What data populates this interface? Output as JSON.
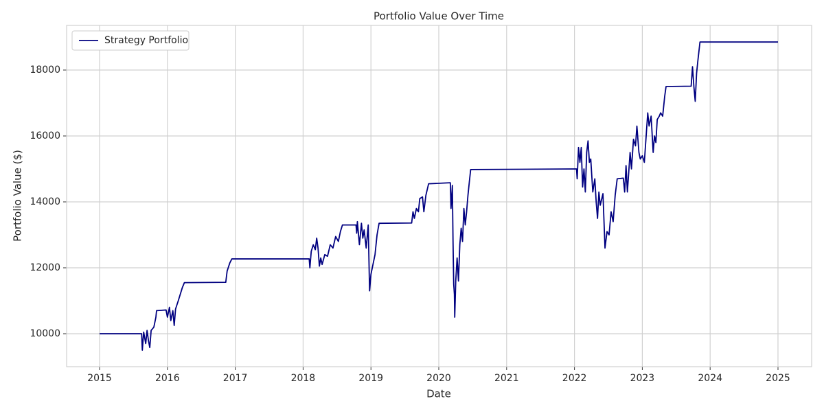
{
  "chart_data": {
    "type": "line",
    "title": "Portfolio Value Over Time",
    "x_label": "Date",
    "y_label": "Portfolio Value ($)",
    "xlim": [
      2014.514,
      2025.496
    ],
    "ylim": [
      9000,
      19354
    ],
    "xticks": [
      2015,
      2016,
      2017,
      2018,
      2019,
      2020,
      2021,
      2022,
      2023,
      2024,
      2025
    ],
    "yticks": [
      10000,
      12000,
      14000,
      16000,
      18000
    ],
    "grid": true,
    "legend": "upper left",
    "x": [
      2015.0,
      2015.62,
      2015.63,
      2015.65,
      2015.68,
      2015.7,
      2015.72,
      2015.74,
      2015.76,
      2015.8,
      2015.83,
      2015.84,
      2015.98,
      2016.0,
      2016.03,
      2016.05,
      2016.08,
      2016.1,
      2016.12,
      2016.16,
      2016.22,
      2016.25,
      2016.86,
      2016.88,
      2016.92,
      2016.95,
      2018.09,
      2018.1,
      2018.12,
      2018.15,
      2018.18,
      2018.2,
      2018.22,
      2018.24,
      2018.26,
      2018.28,
      2018.32,
      2018.36,
      2018.4,
      2018.44,
      2018.48,
      2018.52,
      2018.55,
      2018.58,
      2018.78,
      2018.79,
      2018.8,
      2018.83,
      2018.86,
      2018.88,
      2018.9,
      2018.93,
      2018.96,
      2018.98,
      2019.0,
      2019.03,
      2019.06,
      2019.09,
      2019.12,
      2019.6,
      2019.62,
      2019.64,
      2019.67,
      2019.7,
      2019.72,
      2019.76,
      2019.78,
      2019.81,
      2019.85,
      2020.17,
      2020.18,
      2020.2,
      2020.21,
      2020.22,
      2020.23,
      2020.235,
      2020.25,
      2020.27,
      2020.29,
      2020.31,
      2020.33,
      2020.35,
      2020.37,
      2020.39,
      2020.41,
      2020.43,
      2020.45,
      2020.47,
      2022.03,
      2022.04,
      2022.06,
      2022.08,
      2022.1,
      2022.12,
      2022.14,
      2022.16,
      2022.18,
      2022.2,
      2022.22,
      2022.24,
      2022.27,
      2022.3,
      2022.32,
      2022.34,
      2022.36,
      2022.38,
      2022.42,
      2022.45,
      2022.48,
      2022.51,
      2022.54,
      2022.57,
      2022.6,
      2022.63,
      2022.72,
      2022.74,
      2022.76,
      2022.78,
      2022.82,
      2022.84,
      2022.87,
      2022.9,
      2022.92,
      2022.95,
      2022.97,
      2023.0,
      2023.03,
      2023.06,
      2023.08,
      2023.1,
      2023.13,
      2023.16,
      2023.18,
      2023.2,
      2023.22,
      2023.25,
      2023.27,
      2023.3,
      2023.33,
      2023.35,
      2023.72,
      2023.74,
      2023.76,
      2023.78,
      2023.8,
      2023.82,
      2023.85,
      2025.0
    ],
    "series": [
      {
        "name": "Strategy Portfolio",
        "color": "#000080",
        "values": [
          10000,
          10000,
          9500,
          10050,
          9700,
          10100,
          9800,
          9580,
          10100,
          10200,
          10500,
          10700,
          10720,
          10500,
          10800,
          10400,
          10700,
          10250,
          10750,
          11000,
          11400,
          11550,
          11560,
          11900,
          12150,
          12270,
          12270,
          12000,
          12500,
          12700,
          12550,
          12900,
          12600,
          12050,
          12300,
          12100,
          12400,
          12350,
          12700,
          12600,
          12950,
          12800,
          13100,
          13300,
          13300,
          13050,
          13400,
          12700,
          13350,
          12900,
          13150,
          12600,
          13300,
          11300,
          11800,
          12100,
          12400,
          13000,
          13350,
          13360,
          13700,
          13500,
          13800,
          13700,
          14100,
          14150,
          13700,
          14200,
          14550,
          14580,
          13800,
          14500,
          12800,
          11500,
          11200,
          10500,
          11600,
          12300,
          11600,
          12700,
          13200,
          12800,
          13800,
          13300,
          13700,
          14200,
          14600,
          14980,
          15000,
          14700,
          15650,
          15200,
          15650,
          14450,
          15000,
          14300,
          15500,
          15850,
          15200,
          15300,
          14300,
          14700,
          14000,
          13500,
          14300,
          13900,
          14250,
          12600,
          13100,
          13000,
          13700,
          13400,
          14200,
          14700,
          14720,
          14300,
          15100,
          14300,
          15500,
          15000,
          15900,
          15700,
          16300,
          15500,
          15300,
          15400,
          15200,
          16100,
          16700,
          16300,
          16600,
          15500,
          16000,
          15800,
          16500,
          16600,
          16700,
          16600,
          17200,
          17500,
          17510,
          18100,
          17500,
          17050,
          17900,
          18300,
          18850,
          18850
        ]
      }
    ]
  }
}
